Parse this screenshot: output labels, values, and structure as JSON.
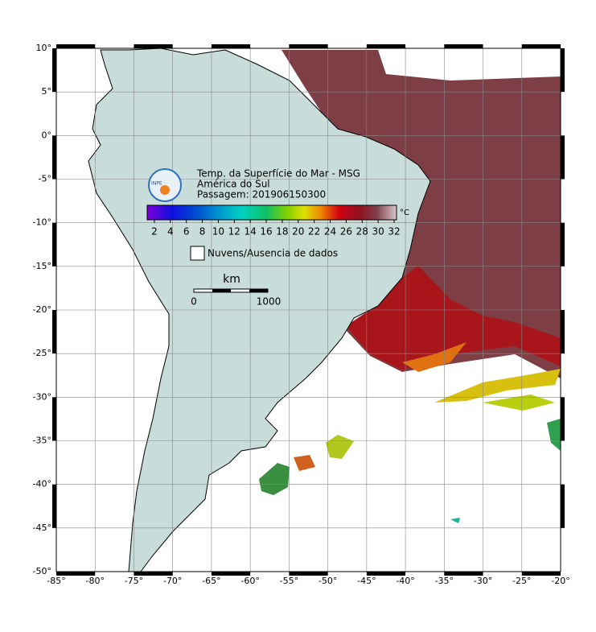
{
  "map": {
    "lonlim": [
      -85,
      -20
    ],
    "latlim": [
      -50,
      10
    ],
    "lat_ticks": [
      {
        "value": 10,
        "label": "10°"
      },
      {
        "value": 5,
        "label": "5°"
      },
      {
        "value": 0,
        "label": "0°"
      },
      {
        "value": -5,
        "label": "-5°"
      },
      {
        "value": -10,
        "label": "-10°"
      },
      {
        "value": -15,
        "label": "-15°"
      },
      {
        "value": -20,
        "label": "-20°"
      },
      {
        "value": -25,
        "label": "-25°"
      },
      {
        "value": -30,
        "label": "-30°"
      },
      {
        "value": -35,
        "label": "-35°"
      },
      {
        "value": -40,
        "label": "-40°"
      },
      {
        "value": -45,
        "label": "-45°"
      },
      {
        "value": -50,
        "label": "-50°"
      }
    ],
    "lon_ticks": [
      {
        "value": -85,
        "label": "-85°"
      },
      {
        "value": -80,
        "label": "-80°"
      },
      {
        "value": -75,
        "label": "-75°"
      },
      {
        "value": -70,
        "label": "-70°"
      },
      {
        "value": -65,
        "label": "-65°"
      },
      {
        "value": -60,
        "label": "-60°"
      },
      {
        "value": -55,
        "label": "-55°"
      },
      {
        "value": -50,
        "label": "-50°"
      },
      {
        "value": -45,
        "label": "-45°"
      },
      {
        "value": -40,
        "label": "-40°"
      },
      {
        "value": -35,
        "label": "-35°"
      },
      {
        "value": -30,
        "label": "-30°"
      },
      {
        "value": -25,
        "label": "-25°"
      },
      {
        "value": -20,
        "label": "-20°"
      }
    ]
  },
  "legend": {
    "title_lines": [
      "Temp. da Superfície do Mar - MSG",
      "América do Sul",
      "Passagem: 201906150300"
    ],
    "logo_text": "INPE",
    "colorbar": {
      "lim": [
        1.1,
        32.3
      ],
      "ticks": [
        2,
        4,
        6,
        8,
        10,
        12,
        14,
        16,
        18,
        20,
        22,
        24,
        26,
        28,
        30,
        32
      ],
      "unit": "°C"
    },
    "no_data": "Nuvens/Ausencia de dados",
    "scale": {
      "unit": "km",
      "start": "0",
      "end": "1000"
    }
  }
}
